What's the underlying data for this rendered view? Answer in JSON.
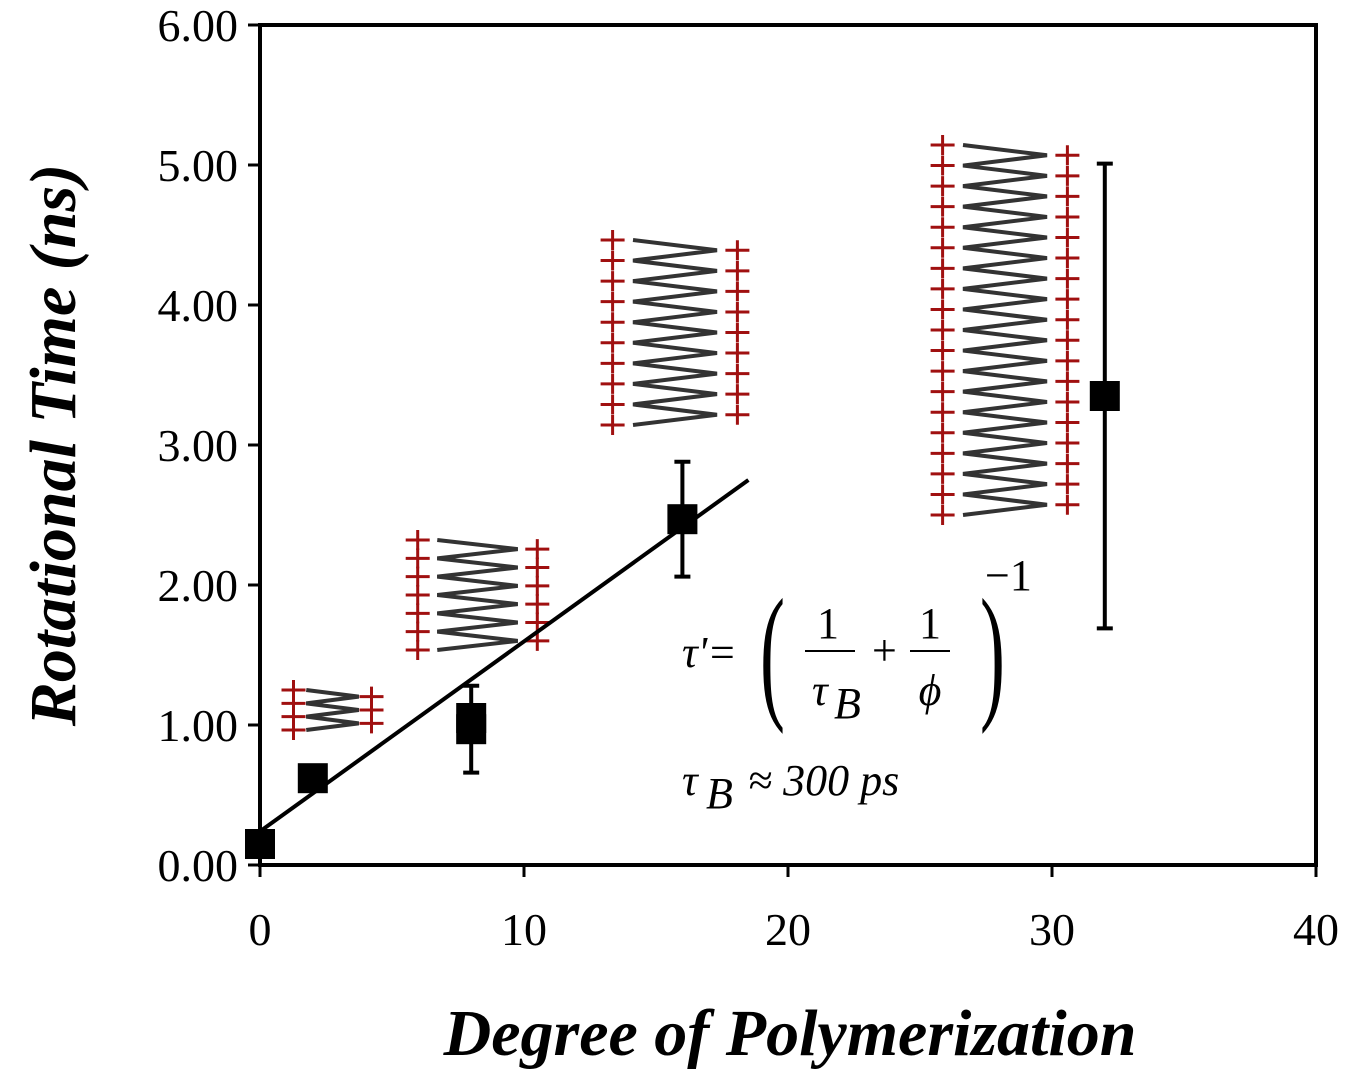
{
  "chart_data": {
    "type": "scatter",
    "x_label": "Degree of Polymerization",
    "y_label": "Rotational Time (ns)",
    "x": [
      0,
      2,
      8,
      8,
      16,
      32
    ],
    "y": [
      0.15,
      0.62,
      1.05,
      0.97,
      2.47,
      3.35
    ],
    "errors": [
      null,
      null,
      null,
      0.31,
      0.41,
      1.66
    ],
    "color": "#000000",
    "fit": {
      "x": [
        0,
        18.5
      ],
      "y": [
        0.24,
        2.75
      ]
    },
    "xlim": [
      0,
      40
    ],
    "xticks": [
      0,
      10,
      20,
      30,
      40
    ],
    "ylim": [
      0,
      6
    ],
    "yticks": [
      {
        "value": 0,
        "label": "0.00"
      },
      {
        "value": 1,
        "label": "1.00"
      },
      {
        "value": 2,
        "label": "2.00"
      },
      {
        "value": 3,
        "label": "3.00"
      },
      {
        "value": 4,
        "label": "4.00"
      },
      {
        "value": 5,
        "label": "5.00"
      },
      {
        "value": 6,
        "label": "6.00"
      }
    ],
    "equation": {
      "lhs": "τ'=",
      "num1": "1",
      "den1": "τ",
      "den1_sub": "B",
      "plus": "+",
      "num2": "1",
      "den2": "ϕ",
      "exp": "−1"
    },
    "approx": {
      "tau": "τ",
      "sub": "B",
      "rest": "≈ 300 ps"
    }
  }
}
